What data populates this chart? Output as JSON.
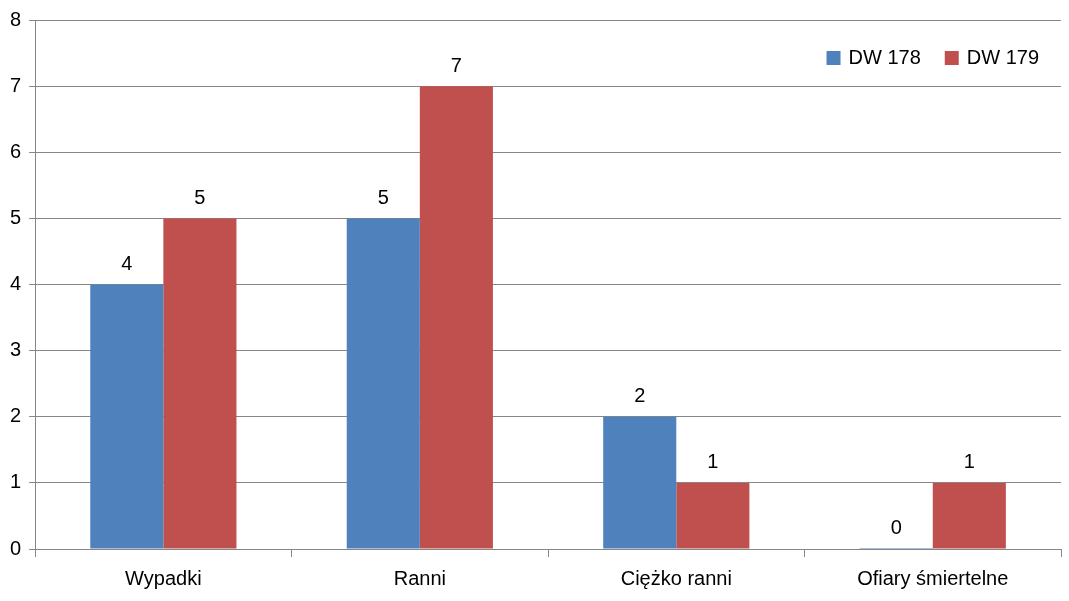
{
  "chart_data": {
    "type": "bar",
    "categories": [
      "Wypadki",
      "Ranni",
      "Ciężko ranni",
      "Ofiary śmiertelne"
    ],
    "series": [
      {
        "name": "DW 178",
        "color": "#4f81bd",
        "values": [
          4,
          5,
          2,
          0
        ]
      },
      {
        "name": "DW 179",
        "color": "#c0504d",
        "values": [
          5,
          7,
          1,
          1
        ]
      }
    ],
    "ylim": [
      0,
      8
    ],
    "yticks": [
      0,
      1,
      2,
      3,
      4,
      5,
      6,
      7,
      8
    ],
    "grid": "y",
    "legend": "top right",
    "data_labels": true
  }
}
